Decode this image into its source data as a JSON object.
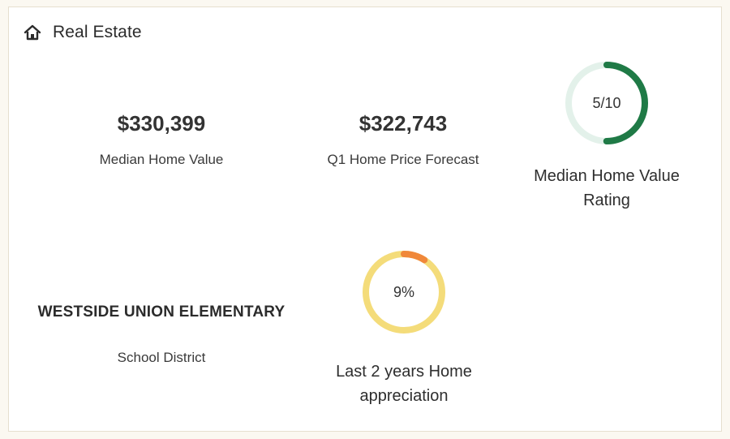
{
  "card": {
    "title": "Real Estate",
    "icon": "home-icon"
  },
  "stats": {
    "median_home_value": {
      "value": "$330,399",
      "label": "Median Home Value"
    },
    "q1_forecast": {
      "value": "$322,743",
      "label": "Q1 Home Price Forecast"
    },
    "school_district": {
      "value": "WESTSIDE UNION ELEMENTARY",
      "label": "School District"
    }
  },
  "gauges": {
    "rating": {
      "text": "5/10",
      "fraction": 0.5,
      "label_line1": "Median Home Value",
      "label_line2": "Rating",
      "color": "#1f7a46",
      "track_color": "#e3f1ea"
    },
    "appreciation": {
      "text": "9%",
      "fraction": 0.09,
      "label_line1": "Last 2 years Home",
      "label_line2": "appreciation",
      "color": "#f0883a",
      "track_color": "#f4dc7a"
    }
  }
}
